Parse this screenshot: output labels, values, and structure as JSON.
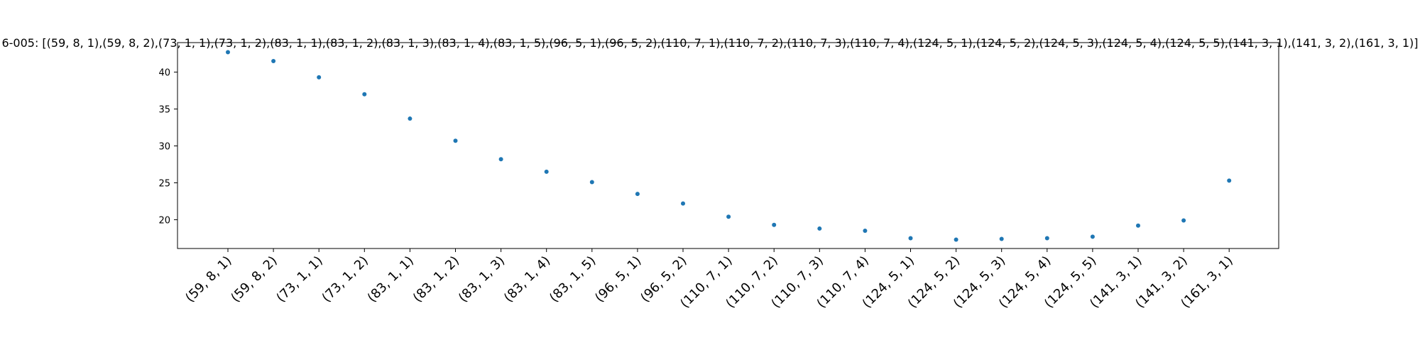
{
  "chart_data": {
    "type": "scatter",
    "title": "6-005: [(59, 8, 1),(59, 8, 2),(73, 1, 1),(73, 1, 2),(83, 1, 1),(83, 1, 2),(83, 1, 3),(83, 1, 4),(83, 1, 5),(96, 5, 1),(96, 5, 2),(110, 7, 1),(110, 7, 2),(110, 7, 3),(110, 7, 4),(124, 5, 1),(124, 5, 2),(124, 5, 3),(124, 5, 4),(124, 5, 5),(141, 3, 1),(141, 3, 2),(161, 3, 1)]",
    "categories": [
      "(59, 8, 1)",
      "(59, 8, 2)",
      "(73, 1, 1)",
      "(73, 1, 2)",
      "(83, 1, 1)",
      "(83, 1, 2)",
      "(83, 1, 3)",
      "(83, 1, 4)",
      "(83, 1, 5)",
      "(96, 5, 1)",
      "(96, 5, 2)",
      "(110, 7, 1)",
      "(110, 7, 2)",
      "(110, 7, 3)",
      "(110, 7, 4)",
      "(124, 5, 1)",
      "(124, 5, 2)",
      "(124, 5, 3)",
      "(124, 5, 4)",
      "(124, 5, 5)",
      "(141, 3, 1)",
      "(141, 3, 2)",
      "(161, 3, 1)"
    ],
    "values": [
      42.7,
      41.5,
      39.3,
      37.0,
      33.7,
      30.7,
      28.2,
      26.5,
      25.1,
      23.5,
      22.2,
      20.4,
      19.3,
      18.8,
      18.5,
      17.5,
      17.3,
      17.4,
      17.5,
      17.7,
      19.2,
      19.9,
      25.3
    ],
    "yticks": [
      20,
      25,
      30,
      35,
      40
    ],
    "ylim": [
      16.1,
      44.0
    ],
    "xlabel": "",
    "ylabel": "",
    "grid": false,
    "marker_color": "#1f77b4"
  }
}
